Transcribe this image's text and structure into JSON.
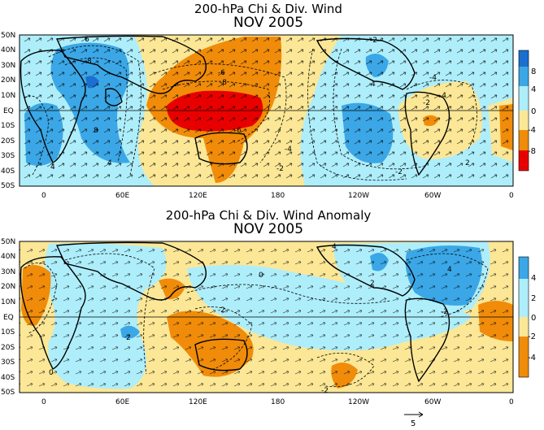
{
  "colors": {
    "neg_strong": "#e80000",
    "neg_mid": "#f08c0a",
    "neg_weak": "#fbe796",
    "pos_weak": "#aeeefb",
    "pos_mid": "#3ba7e6",
    "pos_strong": "#1b6fd0",
    "land": "#000000",
    "contour": "#000000"
  },
  "chart_data": [
    {
      "type": "heatmap",
      "title_line1": "200-hPa Chi & Div. Wind",
      "title_line2": "NOV 2005",
      "y_ticks": [
        "50N",
        "40N",
        "30N",
        "20N",
        "10N",
        "EQ",
        "10S",
        "20S",
        "30S",
        "40S",
        "50S"
      ],
      "x_ticks": [
        "0",
        "60E",
        "120E",
        "180",
        "120W",
        "60W",
        "0"
      ],
      "colorbar": {
        "labels": [
          "8",
          "4",
          "0",
          "-4",
          "-8"
        ]
      },
      "contour_labels": [
        "-6",
        "-8",
        "-6",
        "-4",
        "-2",
        "-2",
        "-4",
        "-2",
        "-4",
        "-2",
        "4",
        "4",
        "4",
        "8",
        "8",
        "6",
        "2"
      ],
      "regions": [
        {
          "lon": [
            20,
            80
          ],
          "lat": [
            5,
            45
          ],
          "value": 6
        },
        {
          "lon": [
            0,
            40
          ],
          "lat": [
            -40,
            0
          ],
          "value": 5
        },
        {
          "lon": [
            90,
            170
          ],
          "lat": [
            -15,
            5
          ],
          "value": -9
        },
        {
          "lon": [
            100,
            180
          ],
          "lat": [
            -40,
            45
          ],
          "value": -5
        },
        {
          "lon": [
            190,
            290
          ],
          "lat": [
            -40,
            30
          ],
          "value": 3
        },
        {
          "lon": [
            290,
            350
          ],
          "lat": [
            -30,
            10
          ],
          "value": -3
        }
      ]
    },
    {
      "type": "heatmap",
      "title_line1": "200-hPa Chi & Div. Wind Anomaly",
      "title_line2": "NOV 2005",
      "y_ticks": [
        "50N",
        "40N",
        "30N",
        "20N",
        "10N",
        "EQ",
        "10S",
        "20S",
        "30S",
        "40S",
        "50S"
      ],
      "x_ticks": [
        "0",
        "60E",
        "120E",
        "180",
        "120W",
        "60W",
        "0"
      ],
      "colorbar": {
        "labels": [
          "4",
          "2",
          "0",
          "-2",
          "-4"
        ]
      },
      "contour_labels": [
        "-2",
        "0",
        "2",
        "2",
        "4",
        "4",
        "0",
        "-2",
        "-2"
      ],
      "vector_scale_label": "5",
      "regions": [
        {
          "lon": [
            -15,
            15
          ],
          "lat": [
            -10,
            30
          ],
          "value": -3
        },
        {
          "lon": [
            110,
            160
          ],
          "lat": [
            -45,
            0
          ],
          "value": -3
        },
        {
          "lon": [
            270,
            330
          ],
          "lat": [
            0,
            45
          ],
          "value": 3
        },
        {
          "lon": [
            20,
            100
          ],
          "lat": [
            -30,
            30
          ],
          "value": 1
        }
      ]
    }
  ]
}
